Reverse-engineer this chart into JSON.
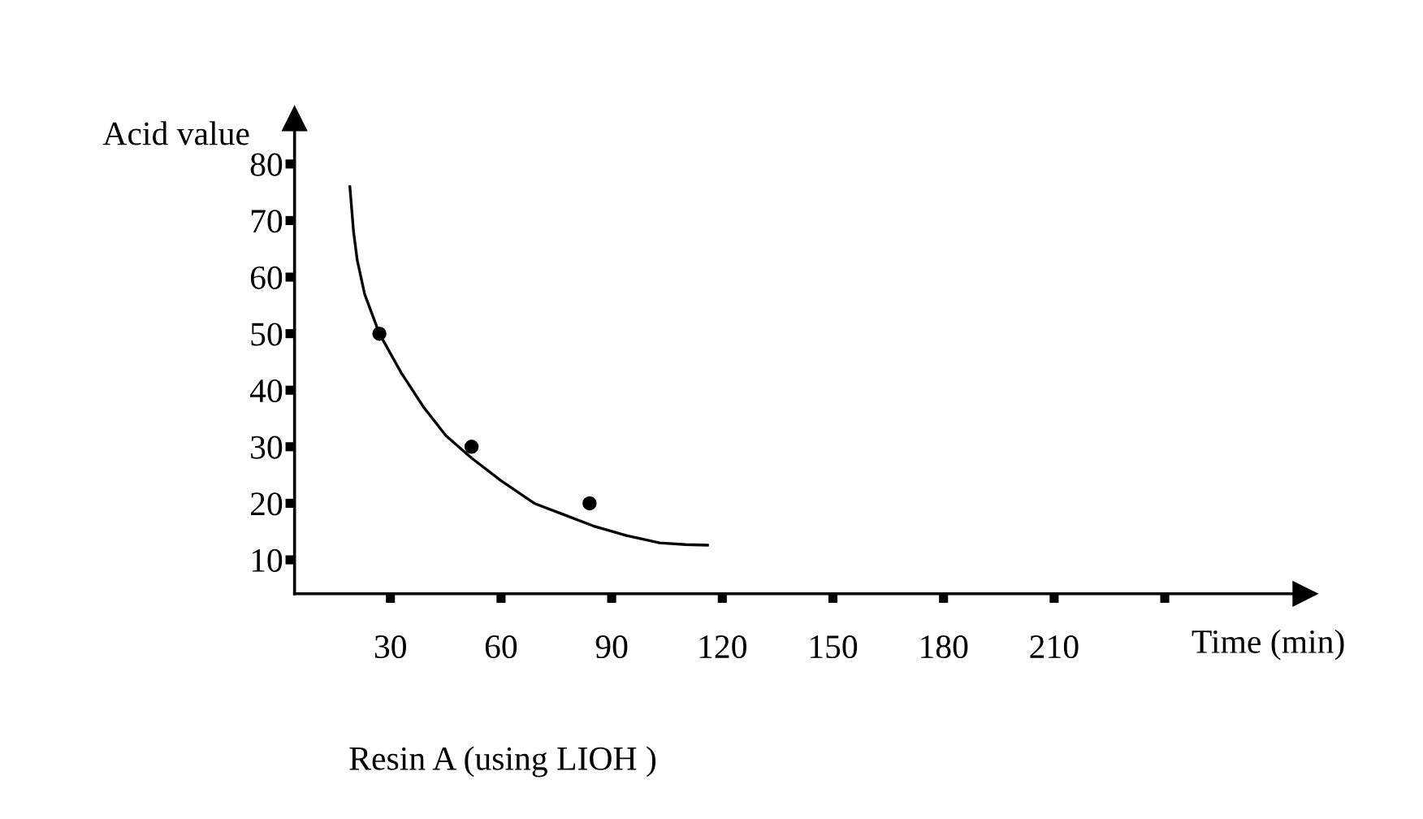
{
  "chart_data": {
    "type": "scatter",
    "xlabel": "Time (min)",
    "ylabel": "Acid value",
    "annotations": [
      "Resin A (using LIOH )"
    ],
    "xlim": [
      4,
      278
    ],
    "ylim": [
      4,
      88
    ],
    "xticks": [
      30,
      60,
      90,
      120,
      150,
      180,
      210,
      {
        "value": 240,
        "label": null
      }
    ],
    "yticks": [
      10,
      20,
      30,
      40,
      50,
      60,
      70,
      80
    ],
    "grid": false,
    "legend": false,
    "series": [
      {
        "marker": "circle",
        "color": "#000000",
        "x": [
          27,
          52,
          84
        ],
        "values": [
          50,
          30,
          20
        ]
      },
      {
        "type": "line",
        "marker": "none",
        "line_style": "solid",
        "color": "#000000",
        "x": [
          19,
          20,
          21,
          23,
          27,
          33,
          39,
          45,
          52,
          60,
          69,
          77,
          85,
          94,
          103,
          110,
          116
        ],
        "values": [
          76,
          68,
          63,
          57,
          50,
          43,
          37,
          32,
          28,
          24,
          20,
          18,
          16,
          14.3,
          13,
          12.7,
          12.6
        ]
      }
    ]
  }
}
